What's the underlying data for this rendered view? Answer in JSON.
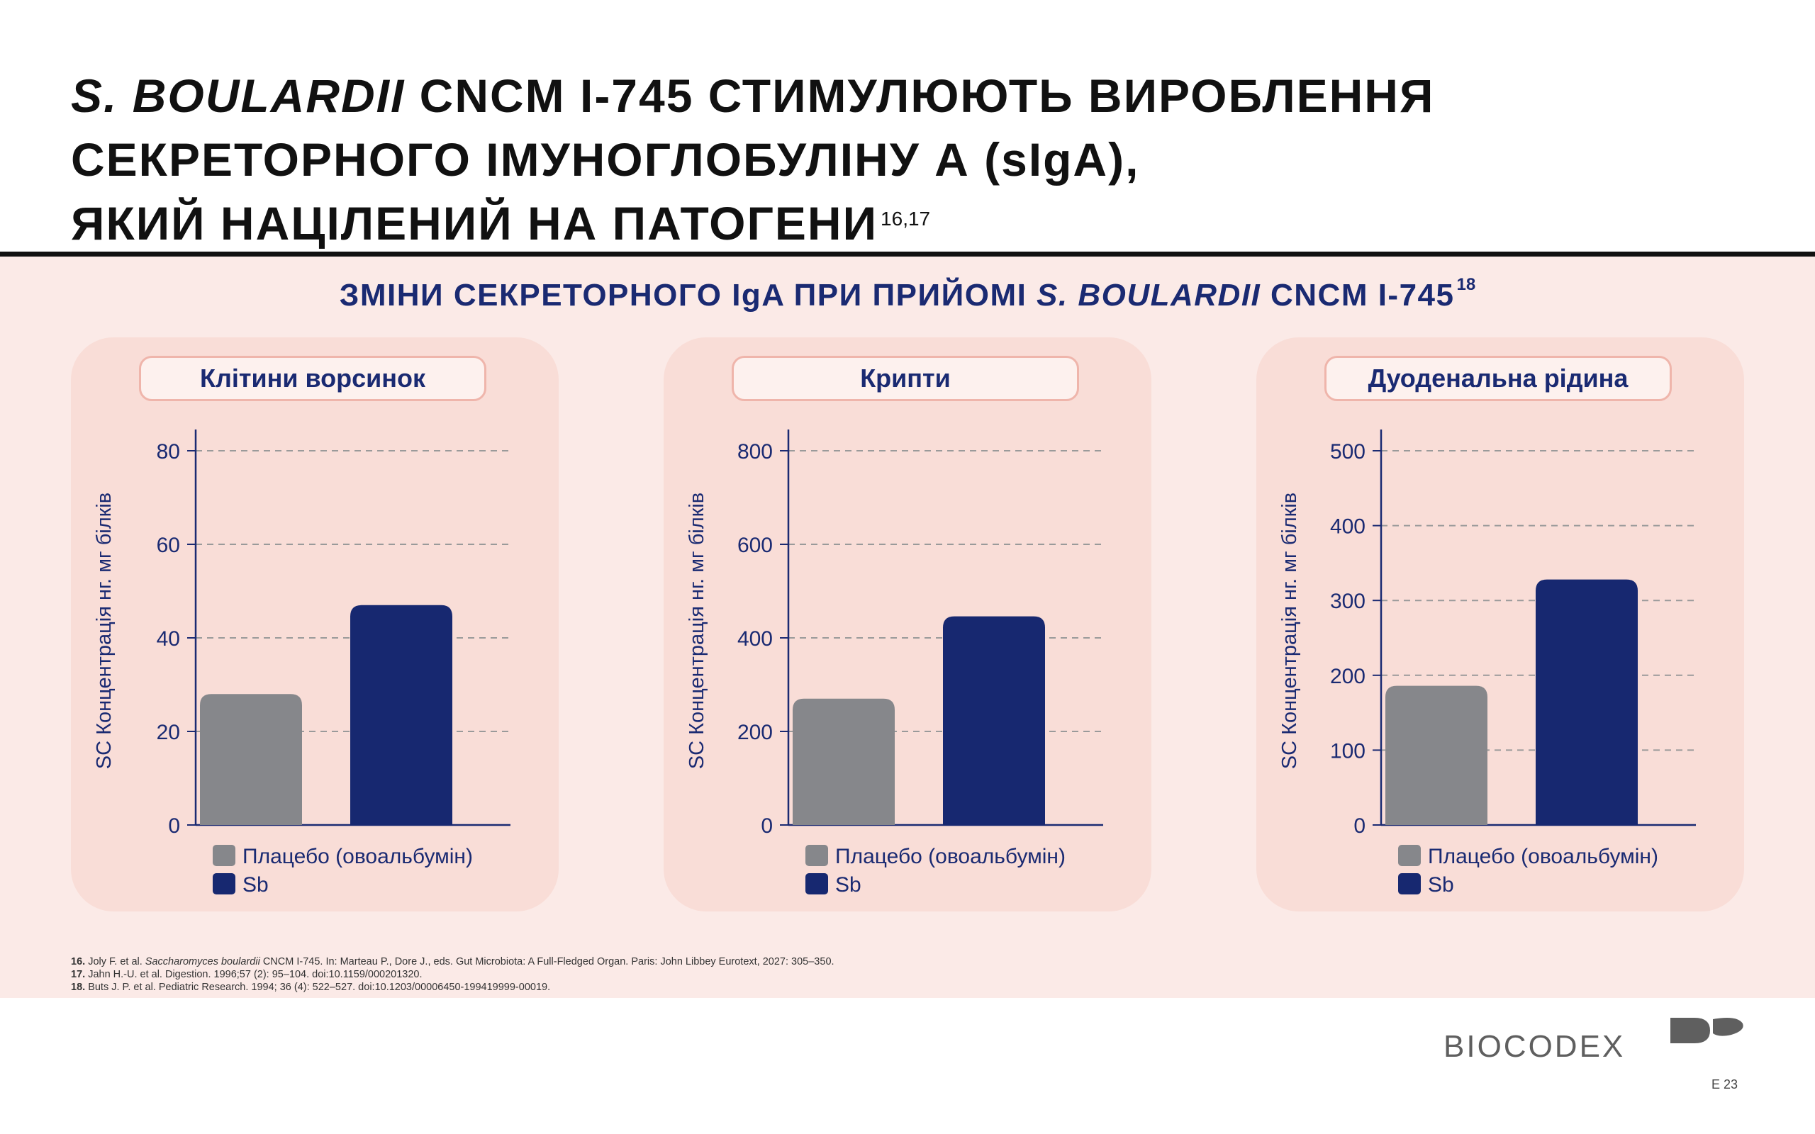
{
  "title": {
    "italic_part": "S. BOULARDII",
    "line1_rest": " CNCM I-745 СТИМУЛЮЮТЬ ВИРОБЛЕННЯ",
    "line2": "СЕКРЕТОРНОГО ІМУНОГЛОБУЛІНУ А (sIgA),",
    "line3": "ЯКИЙ НАЦІЛЕНИЙ НА ПАТОГЕНИ",
    "superscript": "16,17"
  },
  "subtitle": {
    "part1": "ЗМІНИ СЕКРЕТОРНОГО IgA ПРИ ПРИЙОМІ ",
    "italic_part": "S. BOULARDII",
    "part2": " CNCM I-745",
    "superscript": "18"
  },
  "colors": {
    "placebo": "#86878b",
    "sb": "#172870",
    "axis_text": "#1a2a72",
    "band": "#fbeae7",
    "panel": "#f9ddd7"
  },
  "chart_data": [
    {
      "type": "bar",
      "title": "Клітини ворсинок",
      "ylabel": "SC Концентрація нг. мг білків",
      "ylim": [
        0,
        80
      ],
      "yticks": [
        0,
        20,
        40,
        60,
        80
      ],
      "grid": true,
      "legend_position": "bottom-left",
      "series": [
        {
          "name": "Плацебо (овоальбумін)",
          "values": [
            28
          ],
          "color": "#86878b"
        },
        {
          "name": "Sb",
          "values": [
            47
          ],
          "color": "#172870"
        }
      ]
    },
    {
      "type": "bar",
      "title": "Крипти",
      "ylabel": "SC Концентрація нг. мг білків",
      "ylim": [
        0,
        800
      ],
      "yticks": [
        0,
        200,
        400,
        600,
        800
      ],
      "grid": true,
      "legend_position": "bottom-left",
      "series": [
        {
          "name": "Плацебо (овоальбумін)",
          "values": [
            270
          ],
          "color": "#86878b"
        },
        {
          "name": "Sb",
          "values": [
            446
          ],
          "color": "#172870"
        }
      ]
    },
    {
      "type": "bar",
      "title": "Дуоденальна рідина",
      "ylabel": "SC Концентрація нг. мг білків",
      "ylim": [
        0,
        500
      ],
      "yticks": [
        0,
        100,
        200,
        300,
        400,
        500
      ],
      "grid": true,
      "legend_position": "bottom-left",
      "series": [
        {
          "name": "Плацебо (овоальбумін)",
          "values": [
            186
          ],
          "color": "#86878b"
        },
        {
          "name": "Sb",
          "values": [
            328
          ],
          "color": "#172870"
        }
      ]
    }
  ],
  "footnotes": [
    {
      "num": "16.",
      "text_a": " Joly F. et al. ",
      "text_italic": "Saccharomyces boulardii",
      "text_b": " CNCM I-745. In: Marteau P., Dore J., eds. Gut Microbiota: A Full-Fledged Organ. Paris: John Libbey Eurotext, 2027: 305–350."
    },
    {
      "num": "17.",
      "text_a": " Jahn H.-U. et al. Digestion. 1996;57 (2): 95–104. doi:10.1159/000201320.",
      "text_italic": "",
      "text_b": ""
    },
    {
      "num": "18.",
      "text_a": " Buts J. P. et al. Pediatric Research. 1994; 36 (4): 522–527. doi:10.1203/00006450-199419999-00019.",
      "text_italic": "",
      "text_b": ""
    }
  ],
  "logo": {
    "text": "BIOCODEX"
  },
  "page_code": "E 23"
}
